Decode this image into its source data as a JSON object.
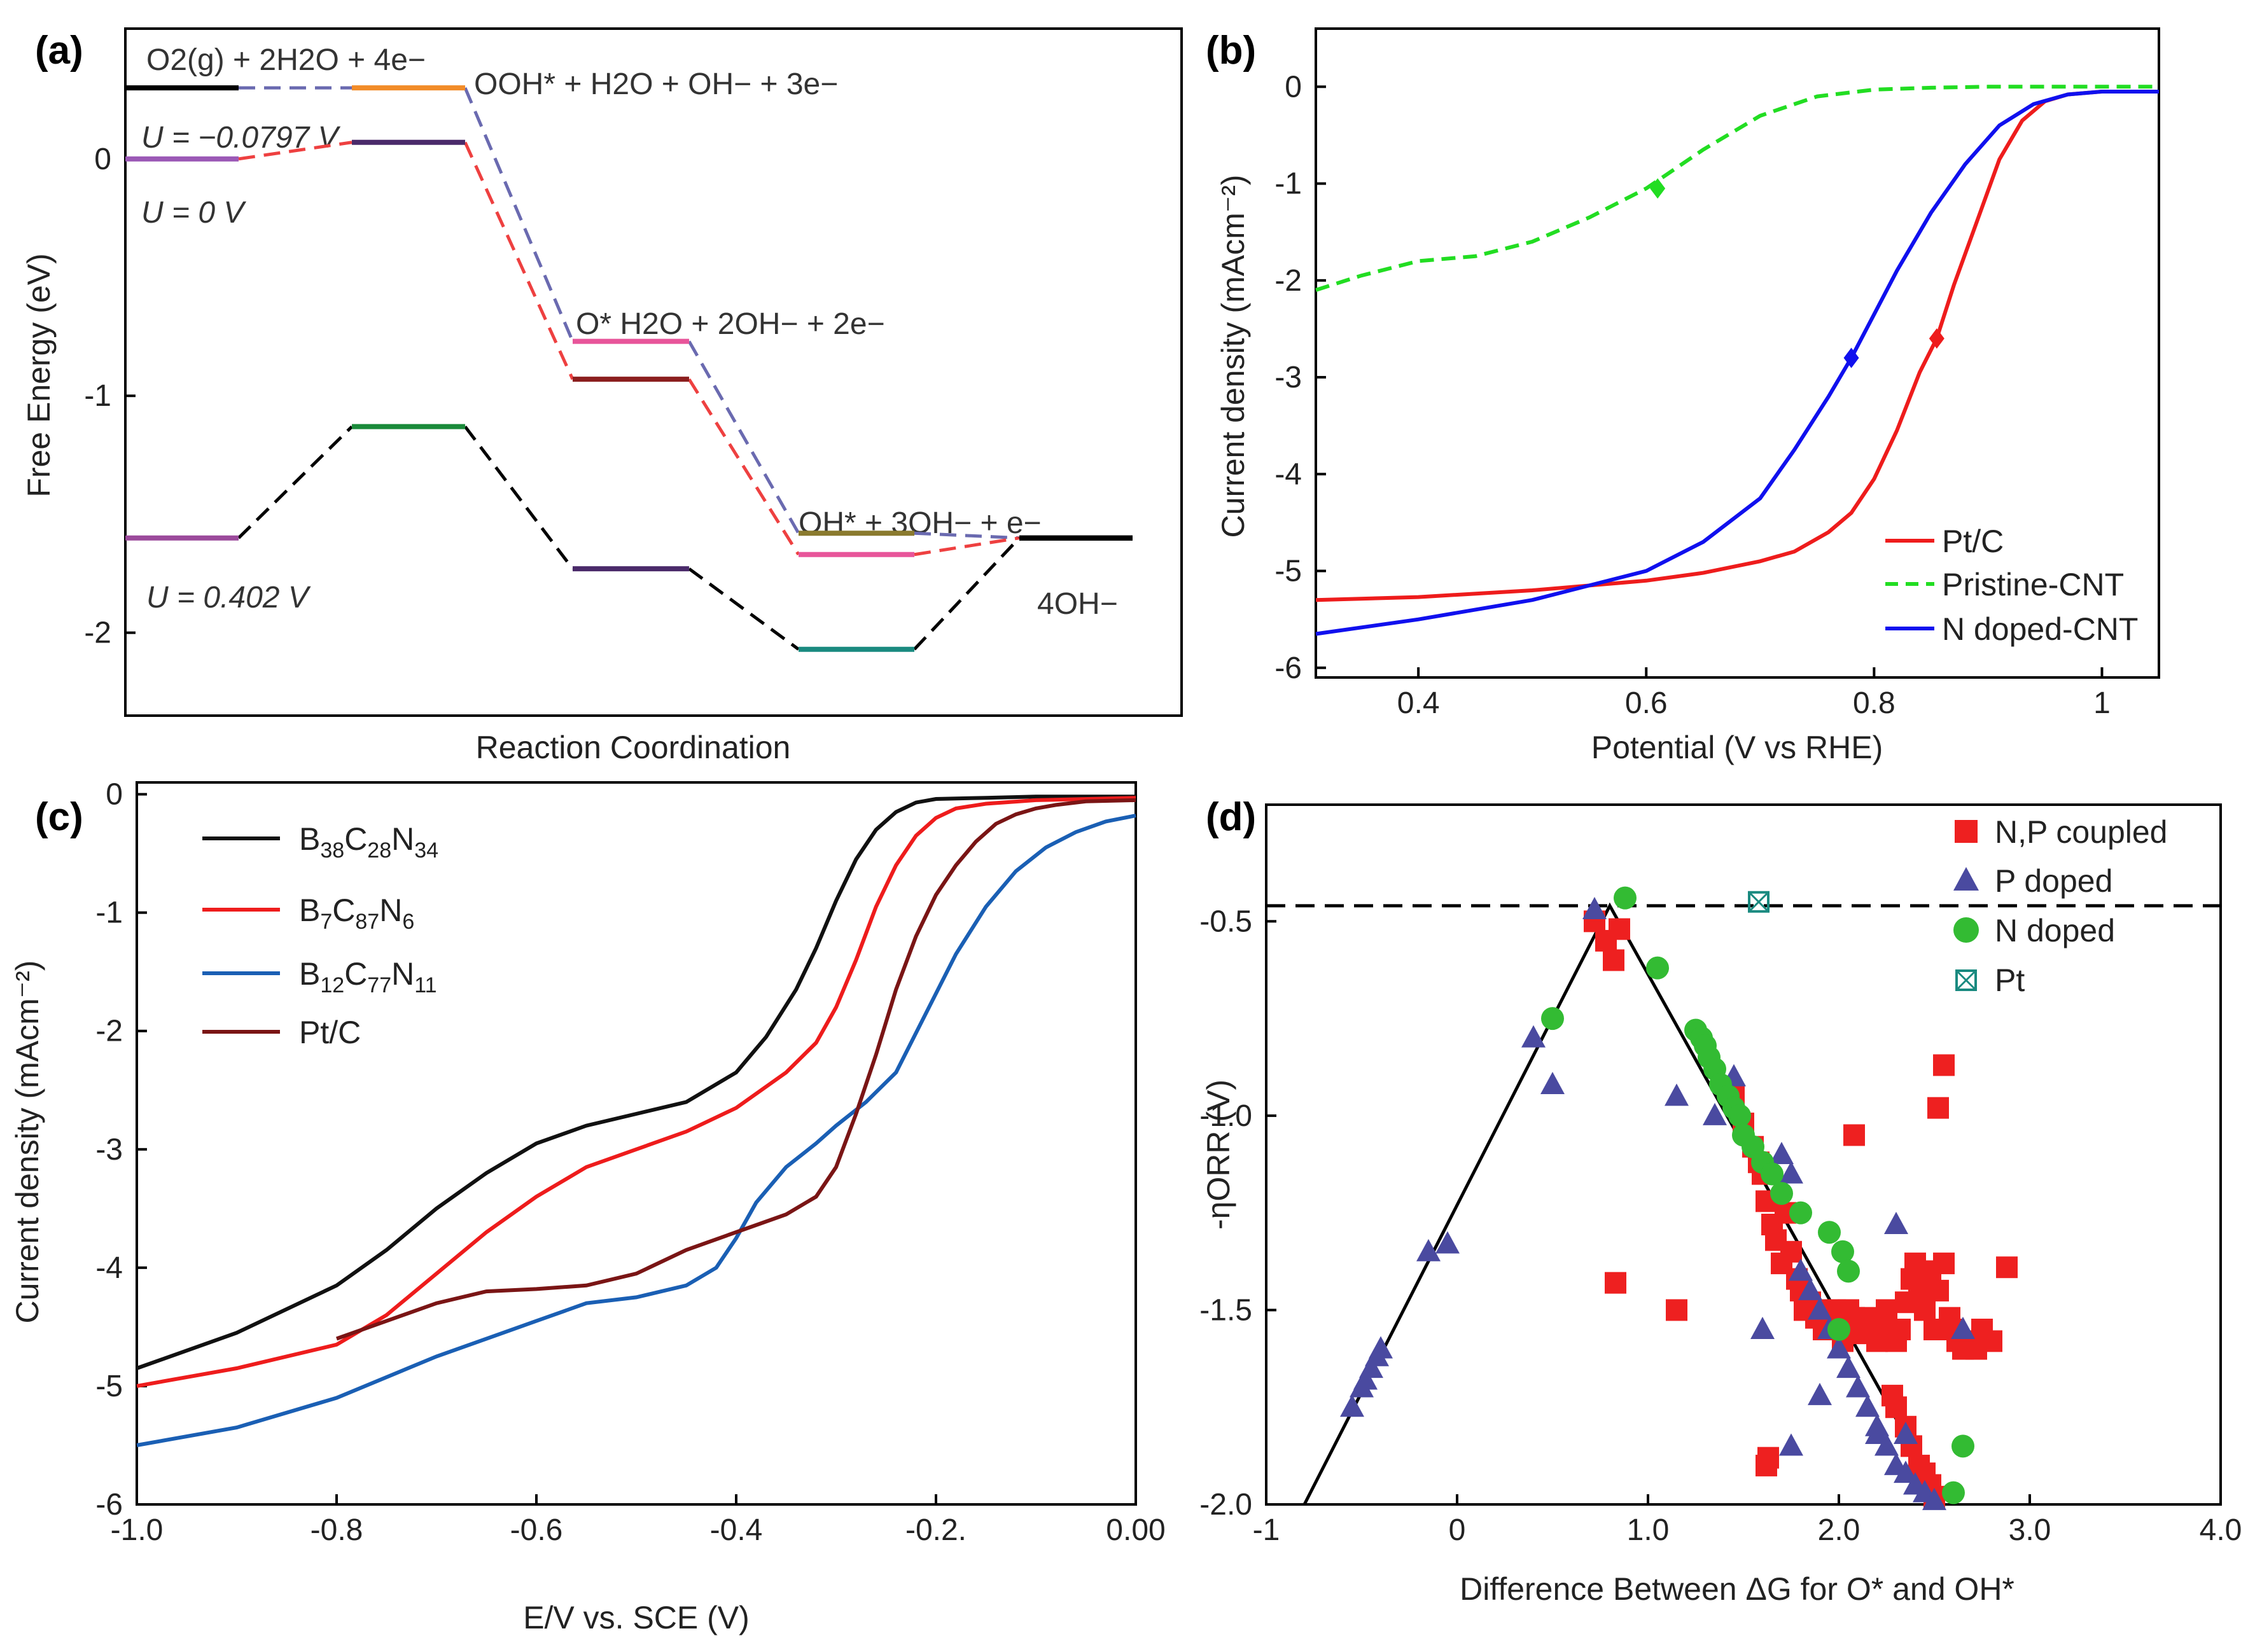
{
  "panel_labels": [
    "(a)",
    "(b)",
    "(c)",
    "(d)"
  ],
  "chart_data": [
    {
      "panel": "(a)",
      "type": "line",
      "title": "",
      "xlabel": "Reaction Coordination",
      "ylabel": "Free Energy (eV)",
      "ylim": [
        -2.35,
        0.55
      ],
      "yticks": [
        0,
        -1,
        -2
      ],
      "ytick_labels": [
        "0",
        "-1",
        "-2"
      ],
      "step_labels": [
        "O2(g) + 2H2O + 4e−",
        "OOH* + H2O + OH− + 3e−",
        "O*  H2O + 2OH− + 2e−",
        "OH* + 3OH− + e−",
        "4OH−"
      ],
      "potential_labels": [
        "U = −0.0797 V",
        "U = 0 V",
        "U = 0.402 V"
      ],
      "series": [
        {
          "name": "U = −0.0797 V",
          "values": [
            0.3,
            0.3,
            -0.77,
            -1.58,
            -1.6
          ],
          "level_colors": [
            "#000000",
            "#f28c28",
            "#e8559a",
            "#8a7a2e",
            "#000000"
          ],
          "connector_color": "#6a6ab0"
        },
        {
          "name": "U = 0 V",
          "values": [
            0.0,
            0.07,
            -0.93,
            -1.67,
            -1.6
          ],
          "level_colors": [
            "#9b59b6",
            "#4a2a6a",
            "#8b1e1e",
            "#e8559a",
            "#000000"
          ],
          "connector_color": "#ee4040"
        },
        {
          "name": "U = 0.402 V",
          "values": [
            -1.6,
            -1.13,
            -1.73,
            -2.07,
            -1.6
          ],
          "level_colors": [
            "#9b4a9b",
            "#1a8a3a",
            "#4a2a6a",
            "#1a8a80",
            "#000000"
          ],
          "connector_color": "#000000"
        }
      ]
    },
    {
      "panel": "(b)",
      "type": "line",
      "xlabel": "Potential (V vs RHE)",
      "ylabel": "Current density (mAcm⁻²)",
      "xlim": [
        0.31,
        1.05
      ],
      "ylim": [
        -6.1,
        0.6
      ],
      "xticks": [
        0.4,
        0.6,
        0.8,
        1.0
      ],
      "xtick_labels": [
        "0.4",
        "0.6",
        "0.8",
        "1"
      ],
      "yticks": [
        0,
        -1,
        -2,
        -3,
        -4,
        -5,
        -6
      ],
      "ytick_labels": [
        "0",
        "-1",
        "-2",
        "-3",
        "-4",
        "-5",
        "-6"
      ],
      "legend_position": "bottom-right",
      "series": [
        {
          "name": "Pt/C",
          "color": "#ee1c1c",
          "dash": "solid",
          "x": [
            0.31,
            0.4,
            0.5,
            0.6,
            0.65,
            0.7,
            0.73,
            0.76,
            0.78,
            0.8,
            0.82,
            0.84,
            0.855,
            0.87,
            0.89,
            0.91,
            0.93,
            0.95,
            0.97,
            1.0,
            1.05
          ],
          "y": [
            -5.3,
            -5.27,
            -5.2,
            -5.1,
            -5.02,
            -4.9,
            -4.8,
            -4.6,
            -4.4,
            -4.05,
            -3.55,
            -2.95,
            -2.6,
            -2.05,
            -1.4,
            -0.75,
            -0.35,
            -0.15,
            -0.08,
            -0.05,
            -0.05
          ],
          "marker": [
            0.855,
            -2.6
          ]
        },
        {
          "name": "Pristine-CNT",
          "color": "#22dd22",
          "dash": "dashed",
          "x": [
            0.31,
            0.35,
            0.4,
            0.45,
            0.5,
            0.55,
            0.6,
            0.65,
            0.7,
            0.75,
            0.8,
            0.85,
            0.9,
            0.95,
            1.05
          ],
          "y": [
            -2.1,
            -1.95,
            -1.8,
            -1.75,
            -1.6,
            -1.35,
            -1.05,
            -0.65,
            -0.3,
            -0.1,
            -0.03,
            -0.01,
            0.0,
            0.0,
            0.0
          ],
          "marker": [
            0.61,
            -1.05
          ]
        },
        {
          "name": "N doped-CNT",
          "color": "#1010ee",
          "dash": "solid",
          "x": [
            0.31,
            0.4,
            0.5,
            0.55,
            0.6,
            0.65,
            0.7,
            0.73,
            0.76,
            0.78,
            0.8,
            0.82,
            0.85,
            0.88,
            0.91,
            0.94,
            0.97,
            1.0,
            1.05
          ],
          "y": [
            -5.65,
            -5.5,
            -5.3,
            -5.15,
            -5.0,
            -4.7,
            -4.25,
            -3.75,
            -3.2,
            -2.8,
            -2.35,
            -1.9,
            -1.3,
            -0.8,
            -0.4,
            -0.18,
            -0.08,
            -0.05,
            -0.05
          ],
          "marker": [
            0.78,
            -2.8
          ]
        }
      ]
    },
    {
      "panel": "(c)",
      "type": "line",
      "xlabel": "E/V vs. SCE (V)",
      "ylabel": "Current density (mAcm⁻²)",
      "xlim": [
        -1.0,
        0.0
      ],
      "ylim": [
        -6.0,
        0.1
      ],
      "xticks": [
        -1.0,
        -0.8,
        -0.6,
        -0.4,
        -0.2,
        0.0
      ],
      "xtick_labels": [
        "-1.0",
        "-0.8",
        "-0.6",
        "-0.4",
        "-0.2.",
        "0.00"
      ],
      "yticks": [
        0,
        -1,
        -2,
        -3,
        -4,
        -5,
        -6
      ],
      "ytick_labels": [
        "0",
        "-1",
        "-2",
        "-3",
        "-4",
        "-5",
        "-6"
      ],
      "legend_position": "top-left",
      "legend": [
        {
          "base": [
            "B",
            "C",
            "N"
          ],
          "subs": [
            "38",
            "28",
            "34"
          ]
        },
        {
          "base": [
            "B",
            "C",
            "N"
          ],
          "subs": [
            "7",
            "87",
            "6"
          ]
        },
        {
          "base": [
            "B",
            "C",
            "N"
          ],
          "subs": [
            "12",
            "77",
            "11"
          ]
        },
        {
          "text": "Pt/C"
        }
      ],
      "series": [
        {
          "name": "B38C28N34",
          "color": "#111111",
          "x": [
            -1.0,
            -0.9,
            -0.8,
            -0.75,
            -0.7,
            -0.65,
            -0.6,
            -0.55,
            -0.5,
            -0.45,
            -0.4,
            -0.37,
            -0.34,
            -0.32,
            -0.3,
            -0.28,
            -0.26,
            -0.24,
            -0.22,
            -0.2,
            -0.15,
            -0.1,
            0.0
          ],
          "y": [
            -4.85,
            -4.55,
            -4.15,
            -3.85,
            -3.5,
            -3.2,
            -2.95,
            -2.8,
            -2.7,
            -2.6,
            -2.35,
            -2.05,
            -1.65,
            -1.3,
            -0.9,
            -0.55,
            -0.3,
            -0.15,
            -0.07,
            -0.04,
            -0.03,
            -0.02,
            -0.02
          ]
        },
        {
          "name": "B7C87N6",
          "color": "#ee1c1c",
          "x": [
            -1.0,
            -0.9,
            -0.8,
            -0.75,
            -0.7,
            -0.65,
            -0.6,
            -0.55,
            -0.5,
            -0.45,
            -0.4,
            -0.35,
            -0.32,
            -0.3,
            -0.28,
            -0.26,
            -0.24,
            -0.22,
            -0.2,
            -0.18,
            -0.15,
            -0.1,
            0.0
          ],
          "y": [
            -5.0,
            -4.85,
            -4.65,
            -4.4,
            -4.05,
            -3.7,
            -3.4,
            -3.15,
            -3.0,
            -2.85,
            -2.65,
            -2.35,
            -2.1,
            -1.8,
            -1.4,
            -0.95,
            -0.6,
            -0.35,
            -0.2,
            -0.12,
            -0.08,
            -0.05,
            -0.03
          ]
        },
        {
          "name": "B12C77N11",
          "color": "#1a5fb4",
          "x": [
            -1.0,
            -0.9,
            -0.8,
            -0.7,
            -0.6,
            -0.55,
            -0.5,
            -0.45,
            -0.42,
            -0.4,
            -0.38,
            -0.35,
            -0.32,
            -0.3,
            -0.27,
            -0.24,
            -0.21,
            -0.18,
            -0.15,
            -0.12,
            -0.09,
            -0.06,
            -0.03,
            0.0
          ],
          "y": [
            -5.5,
            -5.35,
            -5.1,
            -4.75,
            -4.45,
            -4.3,
            -4.25,
            -4.15,
            -4.0,
            -3.75,
            -3.45,
            -3.15,
            -2.95,
            -2.8,
            -2.6,
            -2.35,
            -1.85,
            -1.35,
            -0.95,
            -0.65,
            -0.45,
            -0.32,
            -0.23,
            -0.18
          ]
        },
        {
          "name": "Pt/C",
          "color": "#7a1515",
          "x": [
            -0.8,
            -0.75,
            -0.7,
            -0.65,
            -0.6,
            -0.55,
            -0.5,
            -0.45,
            -0.4,
            -0.35,
            -0.32,
            -0.3,
            -0.28,
            -0.26,
            -0.24,
            -0.22,
            -0.2,
            -0.18,
            -0.16,
            -0.14,
            -0.12,
            -0.1,
            -0.08,
            -0.05,
            0.0
          ],
          "y": [
            -4.6,
            -4.45,
            -4.3,
            -4.2,
            -4.18,
            -4.15,
            -4.05,
            -3.85,
            -3.7,
            -3.55,
            -3.4,
            -3.15,
            -2.7,
            -2.2,
            -1.65,
            -1.2,
            -0.85,
            -0.6,
            -0.4,
            -0.25,
            -0.17,
            -0.12,
            -0.09,
            -0.06,
            -0.05
          ]
        }
      ]
    },
    {
      "panel": "(d)",
      "type": "scatter",
      "xlabel": "Difference Between ΔG for O* and OH*",
      "ylabel": "-ηORR (V)",
      "xlim": [
        -1.0,
        4.0
      ],
      "ylim": [
        -2.0,
        -0.2
      ],
      "xticks": [
        -1,
        0,
        1,
        2,
        3,
        4
      ],
      "xtick_labels": [
        "-1",
        "0",
        "1.0",
        "2.0",
        "3.0",
        "4.0"
      ],
      "yticks": [
        -0.5,
        -1.0,
        -1.5,
        -2.0
      ],
      "ytick_labels": [
        "-0.5",
        "-1.0",
        "-1.5",
        "-2.0"
      ],
      "legend_position": "top-right",
      "reference_line_y": -0.46,
      "volcano_line": {
        "x": [
          -0.8,
          0.8,
          2.55
        ],
        "y": [
          -2.0,
          -0.46,
          -2.0
        ]
      },
      "series": [
        {
          "name": "N,P coupled",
          "marker": "square",
          "color": "#ee2020",
          "x": [
            0.72,
            0.78,
            0.82,
            0.85,
            0.83,
            1.15,
            1.45,
            1.5,
            1.55,
            1.58,
            1.6,
            1.62,
            1.65,
            1.67,
            1.7,
            1.72,
            1.75,
            1.78,
            1.8,
            1.82,
            1.85,
            1.88,
            1.9,
            1.92,
            1.95,
            1.98,
            2.0,
            2.02,
            2.05,
            2.08,
            2.1,
            2.12,
            2.15,
            2.18,
            2.2,
            2.22,
            2.25,
            2.3,
            2.32,
            2.35,
            2.38,
            2.4,
            2.42,
            2.45,
            2.48,
            2.5,
            2.52,
            2.55,
            2.58,
            2.6,
            2.62,
            2.65,
            2.7,
            2.72,
            2.75,
            2.8,
            2.88,
            2.55,
            2.52,
            2.08,
            1.62,
            1.63,
            2.38,
            2.42,
            2.45,
            2.48,
            2.5,
            2.35,
            2.3,
            2.28
          ],
          "y": [
            -0.5,
            -0.55,
            -0.6,
            -0.52,
            -1.43,
            -1.5,
            -0.95,
            -1.02,
            -1.08,
            -1.12,
            -1.15,
            -1.22,
            -1.28,
            -1.32,
            -1.38,
            -1.25,
            -1.35,
            -1.42,
            -1.45,
            -1.5,
            -1.48,
            -1.52,
            -1.5,
            -1.55,
            -1.52,
            -1.5,
            -1.55,
            -1.58,
            -1.5,
            -1.52,
            -1.55,
            -1.56,
            -1.52,
            -1.55,
            -1.58,
            -1.55,
            -1.5,
            -1.58,
            -1.55,
            -1.48,
            -1.42,
            -1.38,
            -1.45,
            -1.5,
            -1.4,
            -1.55,
            -1.45,
            -1.38,
            -1.52,
            -1.55,
            -1.58,
            -1.6,
            -1.58,
            -1.6,
            -1.55,
            -1.58,
            -1.39,
            -0.87,
            -0.98,
            -1.05,
            -1.9,
            -1.88,
            -1.85,
            -1.9,
            -1.92,
            -1.95,
            -1.98,
            -1.8,
            -1.75,
            -1.72
          ]
        },
        {
          "name": "P doped",
          "marker": "triangle",
          "color": "#4a4aa0",
          "x": [
            -0.55,
            -0.5,
            -0.48,
            -0.45,
            -0.42,
            -0.4,
            -0.15,
            -0.05,
            0.4,
            0.5,
            0.72,
            1.15,
            1.35,
            1.45,
            1.6,
            1.7,
            1.75,
            1.8,
            1.85,
            1.9,
            1.95,
            2.0,
            2.05,
            2.1,
            2.15,
            2.2,
            2.25,
            2.3,
            2.35,
            2.4,
            2.45,
            2.5,
            2.3,
            2.2,
            1.9,
            1.75,
            2.65,
            2.35
          ],
          "y": [
            -1.75,
            -1.7,
            -1.68,
            -1.65,
            -1.62,
            -1.6,
            -1.35,
            -1.33,
            -0.8,
            -0.92,
            -0.47,
            -0.95,
            -1.0,
            -0.9,
            -1.55,
            -1.1,
            -1.15,
            -1.4,
            -1.45,
            -1.5,
            -1.55,
            -1.6,
            -1.65,
            -1.7,
            -1.75,
            -1.8,
            -1.85,
            -1.9,
            -1.92,
            -1.95,
            -1.97,
            -1.99,
            -1.28,
            -1.82,
            -1.72,
            -1.85,
            -1.55,
            -1.82
          ]
        },
        {
          "name": "N doped",
          "marker": "circle",
          "color": "#33bb33",
          "x": [
            0.5,
            0.88,
            1.05,
            1.25,
            1.28,
            1.3,
            1.32,
            1.35,
            1.38,
            1.42,
            1.45,
            1.48,
            1.5,
            1.55,
            1.6,
            1.65,
            1.7,
            1.8,
            1.95,
            2.0,
            2.02,
            2.05,
            2.6,
            2.65
          ],
          "y": [
            -0.75,
            -0.44,
            -0.62,
            -0.78,
            -0.8,
            -0.82,
            -0.85,
            -0.88,
            -0.92,
            -0.95,
            -0.98,
            -1.0,
            -1.05,
            -1.08,
            -1.12,
            -1.15,
            -1.2,
            -1.25,
            -1.3,
            -1.55,
            -1.35,
            -1.4,
            -1.97,
            -1.85
          ]
        },
        {
          "name": "Pt",
          "marker": "boxed-x",
          "color": "#1a8a80",
          "x": [
            1.58
          ],
          "y": [
            -0.45
          ]
        }
      ]
    }
  ]
}
